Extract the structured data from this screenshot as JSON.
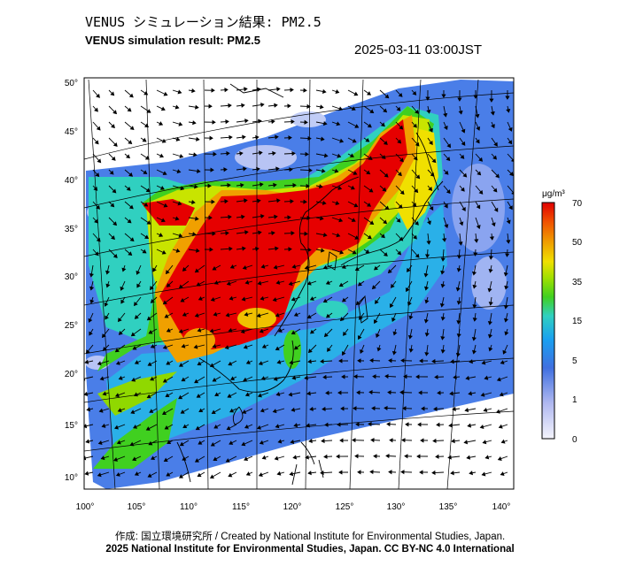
{
  "header": {
    "title_jp": "VENUS シミュレーション結果: PM2.5",
    "title_en": "VENUS simulation result: PM2.5",
    "timestamp": "2025-03-11 03:00JST"
  },
  "map": {
    "lat_labels": [
      "50°",
      "45°",
      "40°",
      "35°",
      "30°",
      "25°",
      "20°",
      "15°",
      "10°"
    ],
    "lon_labels": [
      "100°",
      "105°",
      "110°",
      "115°",
      "120°",
      "125°",
      "130°",
      "135°",
      "140°"
    ]
  },
  "colorbar": {
    "unit": "μg/m³",
    "ticks": [
      "70",
      "50",
      "35",
      "15",
      "5",
      "1",
      "0"
    ],
    "colors": [
      "#e8e8f8",
      "#b0b8f0",
      "#4070e0",
      "#1aa0f0",
      "#30d0c0",
      "#40d020",
      "#a0e000",
      "#f0e000",
      "#f0a000",
      "#f05000",
      "#e00000"
    ]
  },
  "footer": {
    "credit": "作成: 国立環境研究所 / Created by National Institute for Environmental Studies, Japan.",
    "copyright": "2025 National Institute for Environmental Studies, Japan. CC BY-NC 4.0 International"
  }
}
